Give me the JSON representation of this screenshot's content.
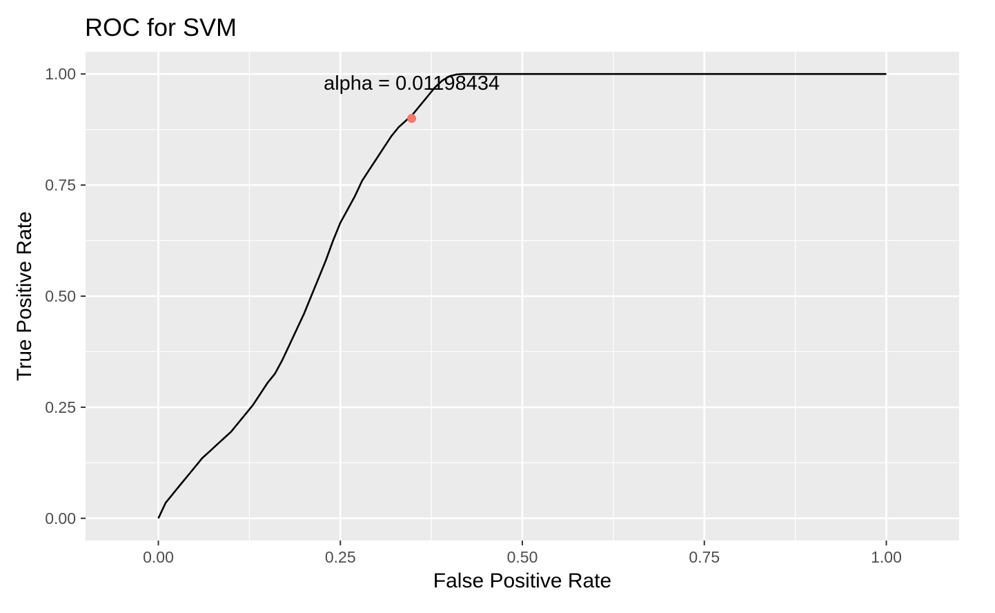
{
  "chart_data": {
    "type": "line",
    "title": "ROC for SVM",
    "xlabel": "False Positive Rate",
    "ylabel": "True Positive Rate",
    "xlim": [
      -0.1,
      1.1
    ],
    "ylim": [
      -0.05,
      1.05
    ],
    "x_ticks": [
      0,
      0.25,
      0.5,
      0.75,
      1.0
    ],
    "x_tick_labels": [
      "0.00",
      "0.25",
      "0.50",
      "0.75",
      "1.00"
    ],
    "y_ticks": [
      0,
      0.25,
      0.5,
      0.75,
      1.0
    ],
    "y_tick_labels": [
      "0.00",
      "0.25",
      "0.50",
      "0.75",
      "1.00"
    ],
    "grid": true,
    "legend": "none",
    "colors": {
      "panel": "#ebebeb",
      "grid": "#ffffff",
      "line": "#000000",
      "point": "#f8766d"
    },
    "series": [
      {
        "x": [
          0,
          0.01,
          0.02,
          0.03,
          0.04,
          0.05,
          0.06,
          0.07,
          0.08,
          0.09,
          0.1,
          0.11,
          0.12,
          0.13,
          0.14,
          0.15,
          0.16,
          0.17,
          0.18,
          0.19,
          0.2,
          0.21,
          0.22,
          0.23,
          0.24,
          0.25,
          0.26,
          0.27,
          0.28,
          0.29,
          0.3,
          0.31,
          0.32,
          0.33,
          0.34,
          0.35,
          0.36,
          0.37,
          0.38,
          0.39,
          0.4,
          0.41,
          0.42,
          0.43,
          0.45,
          0.5,
          0.6,
          0.7,
          0.8,
          0.9,
          1.0
        ],
        "y": [
          0,
          0.035,
          0.055,
          0.075,
          0.095,
          0.115,
          0.135,
          0.15,
          0.165,
          0.18,
          0.195,
          0.215,
          0.235,
          0.255,
          0.28,
          0.305,
          0.325,
          0.355,
          0.39,
          0.425,
          0.46,
          0.5,
          0.54,
          0.58,
          0.625,
          0.665,
          0.695,
          0.725,
          0.76,
          0.785,
          0.81,
          0.835,
          0.86,
          0.88,
          0.895,
          0.91,
          0.93,
          0.95,
          0.97,
          0.985,
          0.995,
          0.999,
          1.0,
          1.0,
          1.0,
          1.0,
          1.0,
          1.0,
          1.0,
          1.0,
          1.0
        ]
      }
    ],
    "highlight_point": {
      "x": 0.348,
      "y": 0.9
    },
    "annotation": {
      "text": "alpha = 0.01198434",
      "x": 0.348,
      "y": 0.98
    }
  }
}
